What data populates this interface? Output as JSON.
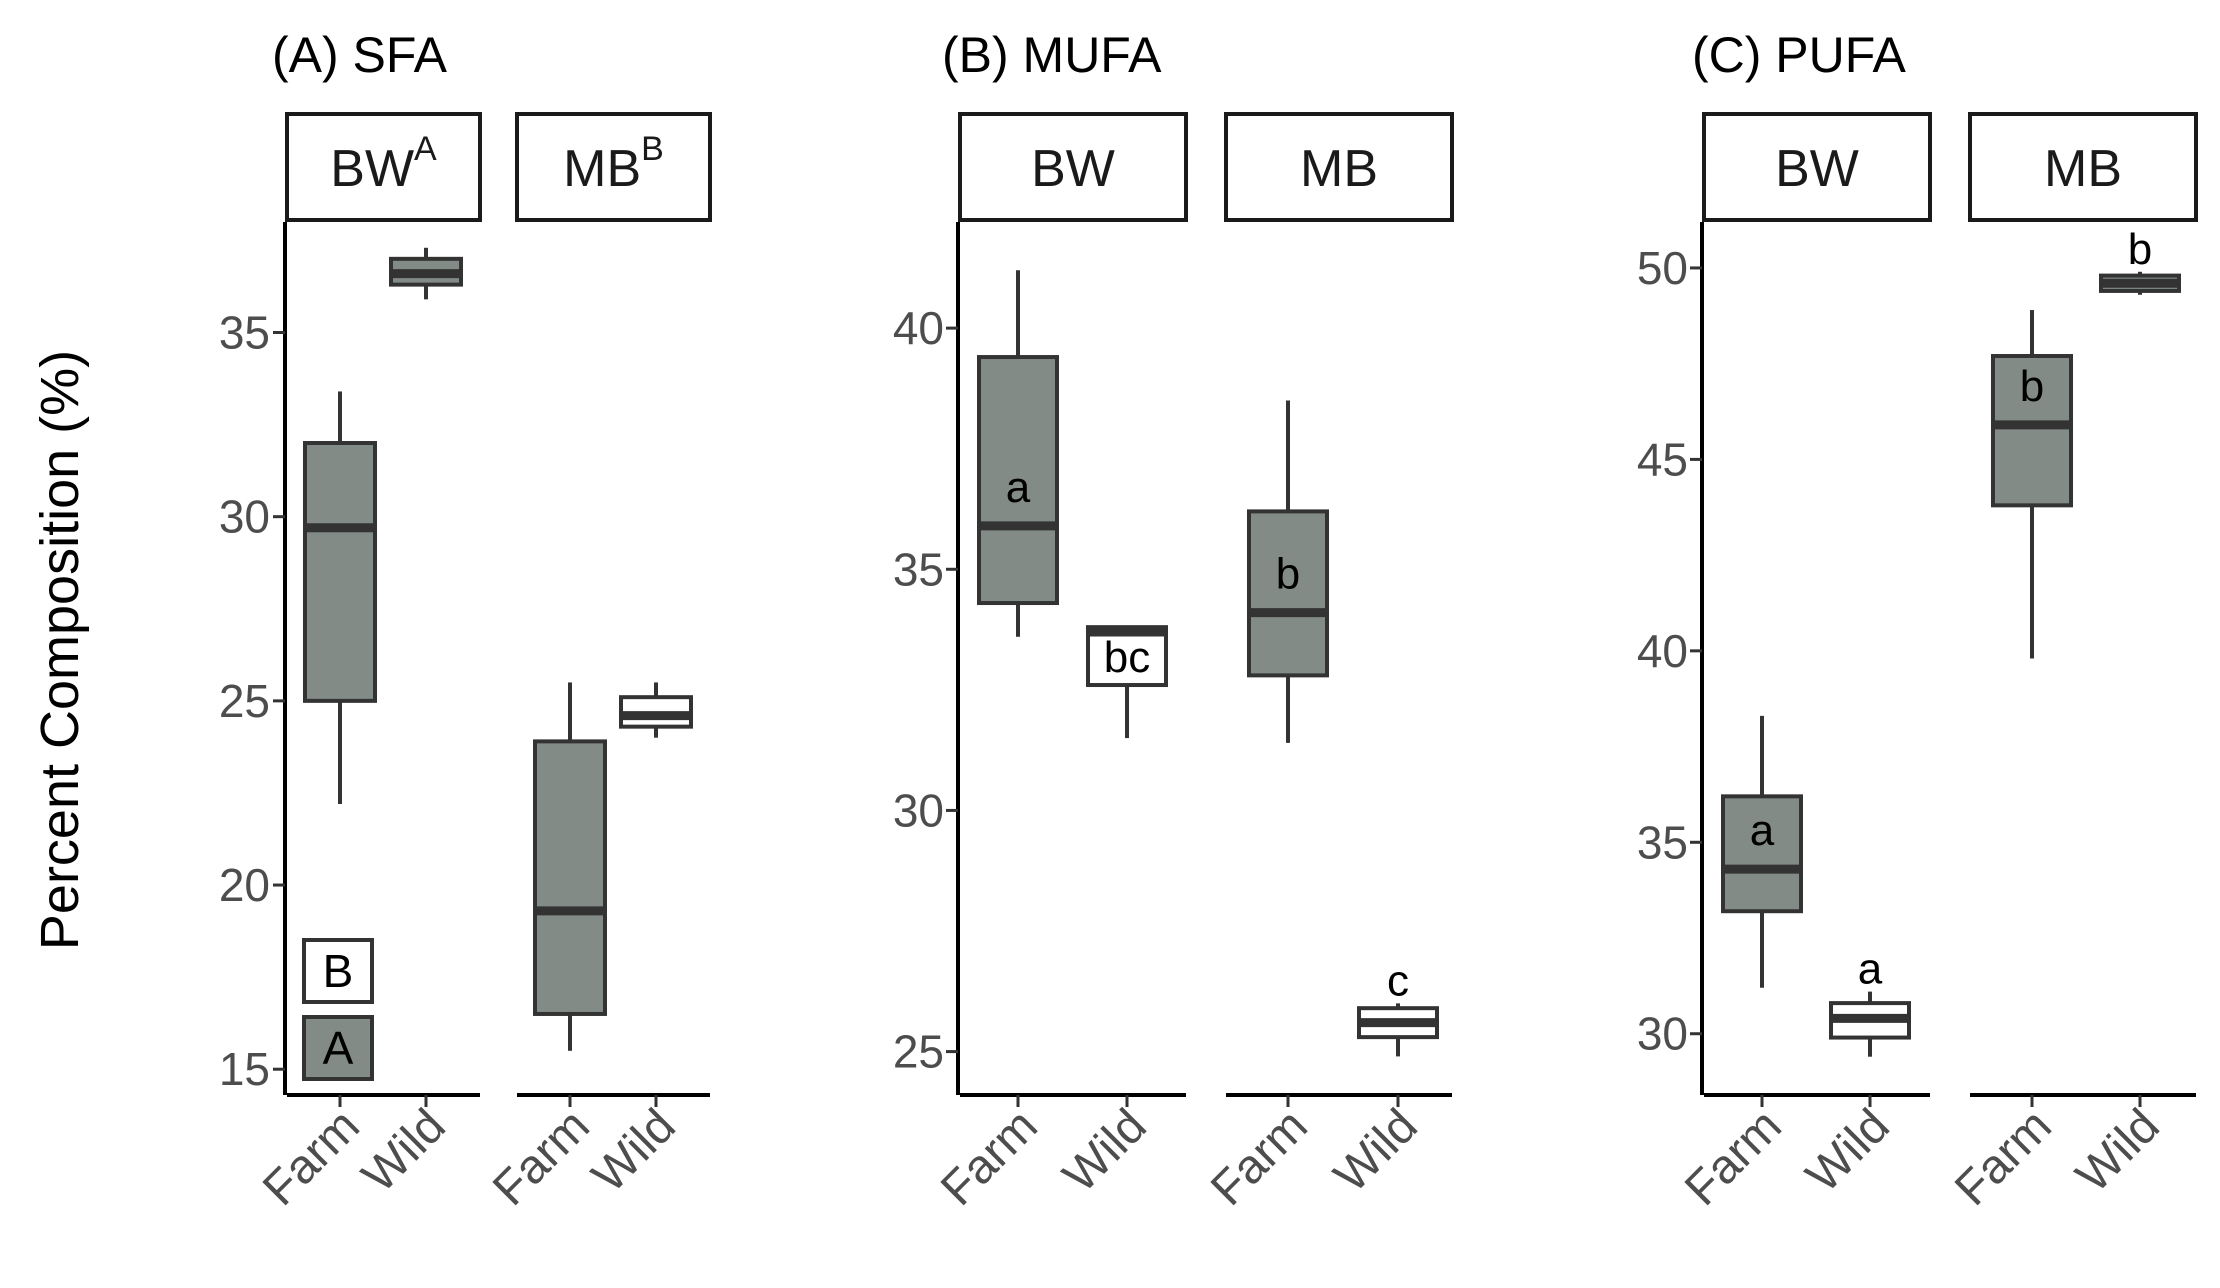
{
  "y_axis_label": "Percent Composition (%)",
  "colors": {
    "farm": "#838b87",
    "wild": "#ffffff",
    "line": "#333333"
  },
  "chart_data": [
    {
      "type": "boxplot",
      "title": "(A) SFA",
      "ylabel": "Percent Composition (%)",
      "ylim": [
        14.3,
        38
      ],
      "yticks": [
        15,
        20,
        25,
        30,
        35
      ],
      "panels": [
        {
          "name": "BW",
          "sup": "A",
          "boxes": [
            {
              "group": "Farm",
              "fill": "farm",
              "whisker_low": 22.2,
              "q1": 25.0,
              "median": 29.7,
              "q3": 32.0,
              "whisker_high": 33.4,
              "label": ""
            },
            {
              "group": "Wild",
              "fill": "farm",
              "whisker_low": 35.9,
              "q1": 36.3,
              "median": 36.6,
              "q3": 37.0,
              "whisker_high": 37.3,
              "label": ""
            }
          ]
        },
        {
          "name": "MB",
          "sup": "B",
          "boxes": [
            {
              "group": "Farm",
              "fill": "farm",
              "whisker_low": 15.5,
              "q1": 16.5,
              "median": 19.3,
              "q3": 23.9,
              "whisker_high": 25.5,
              "label": ""
            },
            {
              "group": "Wild",
              "fill": "wild",
              "whisker_low": 24.0,
              "q1": 24.3,
              "median": 24.6,
              "q3": 25.1,
              "whisker_high": 25.5,
              "label": ""
            }
          ]
        }
      ],
      "legend": [
        {
          "text": "B",
          "fill": "wild"
        },
        {
          "text": "A",
          "fill": "farm"
        }
      ]
    },
    {
      "type": "boxplot",
      "title": "(B) MUFA",
      "ylabel": "",
      "ylim": [
        24.1,
        42.2
      ],
      "yticks": [
        25,
        30,
        35,
        40
      ],
      "panels": [
        {
          "name": "BW",
          "sup": "",
          "boxes": [
            {
              "group": "Farm",
              "fill": "farm",
              "whisker_low": 33.6,
              "q1": 34.3,
              "median": 35.9,
              "q3": 39.4,
              "whisker_high": 41.2,
              "label": "a"
            },
            {
              "group": "Wild",
              "fill": "wild",
              "whisker_low": 31.5,
              "q1": 32.6,
              "median": 33.7,
              "q3": 33.8,
              "whisker_high": 33.8,
              "label": "bc"
            }
          ]
        },
        {
          "name": "MB",
          "sup": "",
          "boxes": [
            {
              "group": "Farm",
              "fill": "farm",
              "whisker_low": 31.4,
              "q1": 32.8,
              "median": 34.1,
              "q3": 36.2,
              "whisker_high": 38.5,
              "label": "b"
            },
            {
              "group": "Wild",
              "fill": "wild",
              "whisker_low": 24.9,
              "q1": 25.3,
              "median": 25.6,
              "q3": 25.9,
              "whisker_high": 26.0,
              "label": "c"
            }
          ]
        }
      ]
    },
    {
      "type": "boxplot",
      "title": "(C) PUFA",
      "ylabel": "",
      "ylim": [
        28.4,
        51.2
      ],
      "yticks": [
        30,
        35,
        40,
        45,
        50
      ],
      "panels": [
        {
          "name": "BW",
          "sup": "",
          "boxes": [
            {
              "group": "Farm",
              "fill": "farm",
              "whisker_low": 31.2,
              "q1": 33.2,
              "median": 34.3,
              "q3": 36.2,
              "whisker_high": 38.3,
              "label": "a"
            },
            {
              "group": "Wild",
              "fill": "wild",
              "whisker_low": 29.4,
              "q1": 29.9,
              "median": 30.4,
              "q3": 30.8,
              "whisker_high": 31.1,
              "label": "a"
            }
          ]
        },
        {
          "name": "MB",
          "sup": "",
          "boxes": [
            {
              "group": "Farm",
              "fill": "farm",
              "whisker_low": 39.8,
              "q1": 43.8,
              "median": 45.9,
              "q3": 47.7,
              "whisker_high": 48.9,
              "label": "b"
            },
            {
              "group": "Wild",
              "fill": "farm",
              "whisker_low": 49.3,
              "q1": 49.4,
              "median": 49.6,
              "q3": 49.8,
              "whisker_high": 49.9,
              "label": "b"
            }
          ]
        }
      ]
    }
  ]
}
